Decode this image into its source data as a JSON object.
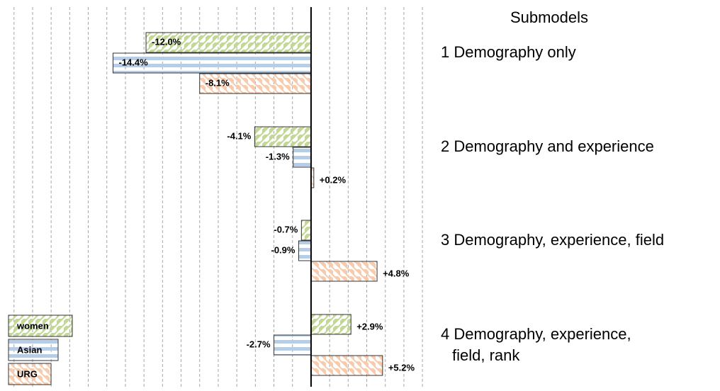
{
  "chart_data": {
    "type": "hbar-grouped",
    "legend_title": "Submodels",
    "categories": [
      "1 Demography only",
      "2 Demography and experience",
      "3 Demography, experience, field",
      "4 Demography, experience,\nfield, rank"
    ],
    "series": [
      {
        "name": "women",
        "color": "#c4d79b",
        "pattern": "diagonal-down",
        "values": [
          -12.0,
          -4.1,
          -0.7,
          2.9
        ],
        "value_labels": [
          "-12.0%",
          "-4.1%",
          "-0.7%",
          "+2.9%"
        ]
      },
      {
        "name": "Asian",
        "color": "#b8cce4",
        "pattern": "horizontal",
        "values": [
          -14.4,
          -1.3,
          -0.9,
          -2.7
        ],
        "value_labels": [
          "-14.4%",
          "-1.3%",
          "-0.9%",
          "-2.7%"
        ]
      },
      {
        "name": "URG",
        "color": "#f8cbad",
        "pattern": "diagonal-up",
        "values": [
          -8.1,
          0.2,
          4.8,
          5.2
        ],
        "value_labels": [
          "-8.1%",
          "+0.2%",
          "+4.8%",
          "+5.2%"
        ]
      }
    ],
    "xlim": [
      -22,
      8.3
    ],
    "xticks": [
      -21.6,
      -20.25,
      -18.9,
      -17.55,
      -16.2,
      -14.85,
      -13.5,
      -12.15,
      -10.8,
      -9.45,
      -8.1,
      -6.75,
      -5.4,
      -4.05,
      -2.7,
      -1.35,
      0,
      1.35,
      2.7,
      4.05,
      5.4,
      6.75,
      8.1
    ],
    "grid": true,
    "legend": "bottom-left"
  }
}
